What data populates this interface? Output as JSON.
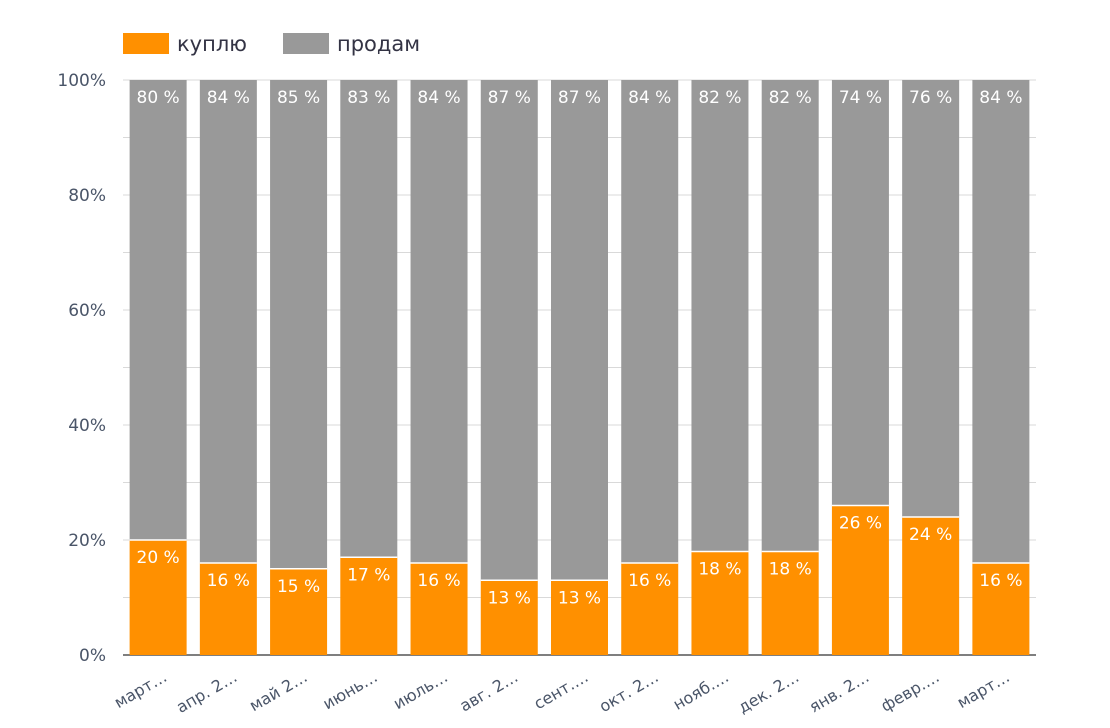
{
  "chart_data": {
    "type": "bar",
    "stacked": "percent",
    "categories": [
      "март…",
      "апр. 2…",
      "май 2…",
      "июнь…",
      "июль…",
      "авг. 2…",
      "сент.…",
      "окт. 2…",
      "нояб.…",
      "дек. 2…",
      "янв. 2…",
      "февр.…",
      "март…"
    ],
    "series": [
      {
        "name": "куплю",
        "color": "#ff9000",
        "values": [
          20,
          16,
          15,
          17,
          16,
          13,
          13,
          16,
          18,
          18,
          26,
          24,
          16
        ],
        "labels": [
          "20 %",
          "16 %",
          "15 %",
          "17 %",
          "16 %",
          "13 %",
          "13 %",
          "16 %",
          "18 %",
          "18 %",
          "26 %",
          "24 %",
          "16 %"
        ]
      },
      {
        "name": "продам",
        "color": "#999999",
        "values": [
          80,
          84,
          85,
          83,
          84,
          87,
          87,
          84,
          82,
          82,
          74,
          76,
          84
        ],
        "labels": [
          "80 %",
          "84 %",
          "85 %",
          "83 %",
          "84 %",
          "87 %",
          "87 %",
          "84 %",
          "82 %",
          "82 %",
          "74 %",
          "76 %",
          "84 %"
        ]
      }
    ],
    "yticks": [
      "0%",
      "20%",
      "40%",
      "60%",
      "80%",
      "100%"
    ],
    "ylim": [
      0,
      100
    ],
    "grid": true,
    "legend": "top-left"
  }
}
